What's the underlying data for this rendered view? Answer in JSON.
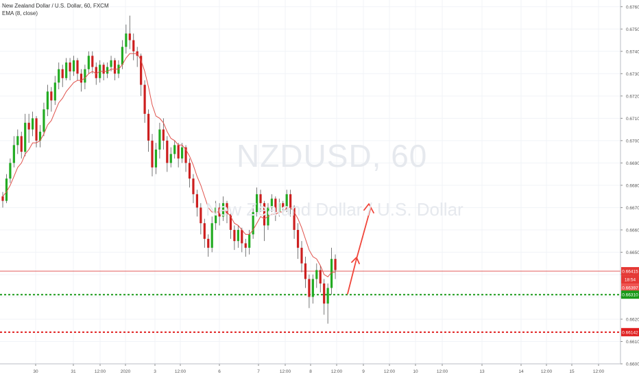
{
  "legend": {
    "symbol_line": "New Zealand Dollar / U.S. Dollar, 60, FXCM",
    "indicator_line": "EMA (8, close)"
  },
  "watermark": {
    "title": "NZDUSD, 60",
    "subtitle": "New Zealand Dollar / U.S. Dollar"
  },
  "colors": {
    "up": "#22ab22",
    "down": "#cc1f1f",
    "ema": "#e0504a",
    "grid": "#f0f3f7",
    "axis_text": "#555555",
    "support": "#1a9a1a",
    "lower_support": "#e02020",
    "resistance": "#e05a5a",
    "arrow": "#f0453a"
  },
  "chart_data": {
    "type": "candlestick",
    "title": "NZDUSD, 60",
    "ylim": [
      0.66,
      0.6763
    ],
    "y_ticks": [
      "0.66000",
      "0.66100",
      "0.66200",
      "0.66300",
      "0.66400",
      "0.66500",
      "0.66600",
      "0.66700",
      "0.66800",
      "0.66900",
      "0.67000",
      "0.67100",
      "0.67200",
      "0.67300",
      "0.67400",
      "0.67500",
      "0.67600"
    ],
    "x_ticks": [
      "30",
      "31",
      "12:00",
      "2020",
      "3",
      "12:00",
      "6",
      "7",
      "12:00",
      "8",
      "12:00",
      "9",
      "12:00",
      "10",
      "12:00",
      "13",
      "14",
      "12:00",
      "15",
      "12:00"
    ],
    "price_labels": {
      "last_price": "0.66415",
      "countdown": "18:54",
      "ema_value": "0.66397",
      "support": "0.66310",
      "lower_support": "0.66142"
    },
    "levels": {
      "resistance": 0.66415,
      "support": 0.6631,
      "lower_support": 0.66142
    },
    "candles": [
      [
        0.6675,
        0.6673,
        0.6677,
        0.667
      ],
      [
        0.6673,
        0.6683,
        0.6685,
        0.6672
      ],
      [
        0.6683,
        0.669,
        0.6692,
        0.6681
      ],
      [
        0.669,
        0.6698,
        0.6702,
        0.6688
      ],
      [
        0.6698,
        0.6702,
        0.6705,
        0.6694
      ],
      [
        0.6702,
        0.6695,
        0.6704,
        0.6692
      ],
      [
        0.6695,
        0.6708,
        0.6712,
        0.6693
      ],
      [
        0.6708,
        0.6705,
        0.6712,
        0.6699
      ],
      [
        0.6705,
        0.671,
        0.6713,
        0.6702
      ],
      [
        0.671,
        0.67,
        0.6711,
        0.6697
      ],
      [
        0.67,
        0.6704,
        0.6707,
        0.6697
      ],
      [
        0.6704,
        0.6714,
        0.6717,
        0.6702
      ],
      [
        0.6714,
        0.6722,
        0.6725,
        0.6711
      ],
      [
        0.6722,
        0.6718,
        0.6724,
        0.6713
      ],
      [
        0.6718,
        0.6726,
        0.6729,
        0.6716
      ],
      [
        0.6726,
        0.6732,
        0.6735,
        0.6723
      ],
      [
        0.6732,
        0.6728,
        0.6734,
        0.6724
      ],
      [
        0.6728,
        0.6735,
        0.6737,
        0.6727
      ],
      [
        0.6735,
        0.6731,
        0.6737,
        0.6727
      ],
      [
        0.6731,
        0.6736,
        0.6738,
        0.6729
      ],
      [
        0.6736,
        0.673,
        0.6737,
        0.6727
      ],
      [
        0.673,
        0.6726,
        0.6732,
        0.6722
      ],
      [
        0.6726,
        0.6732,
        0.6734,
        0.6723
      ],
      [
        0.6732,
        0.6738,
        0.674,
        0.673
      ],
      [
        0.6738,
        0.6733,
        0.674,
        0.673
      ],
      [
        0.6733,
        0.6728,
        0.6735,
        0.6725
      ],
      [
        0.6728,
        0.6734,
        0.6736,
        0.6726
      ],
      [
        0.6734,
        0.673,
        0.6735,
        0.6727
      ],
      [
        0.673,
        0.6733,
        0.6735,
        0.6728
      ],
      [
        0.6733,
        0.6736,
        0.6738,
        0.6731
      ],
      [
        0.6736,
        0.673,
        0.6737,
        0.6727
      ],
      [
        0.673,
        0.6734,
        0.6736,
        0.6728
      ],
      [
        0.6734,
        0.6742,
        0.6745,
        0.6732
      ],
      [
        0.6742,
        0.6748,
        0.6752,
        0.6739
      ],
      [
        0.6748,
        0.6745,
        0.6756,
        0.6741
      ],
      [
        0.6745,
        0.674,
        0.6748,
        0.6736
      ],
      [
        0.674,
        0.6738,
        0.6742,
        0.6733
      ],
      [
        0.6738,
        0.6725,
        0.6739,
        0.672
      ],
      [
        0.6725,
        0.6712,
        0.6727,
        0.6708
      ],
      [
        0.6712,
        0.67,
        0.6714,
        0.6695
      ],
      [
        0.67,
        0.6688,
        0.6703,
        0.6684
      ],
      [
        0.6688,
        0.6696,
        0.6699,
        0.6685
      ],
      [
        0.6696,
        0.6705,
        0.6708,
        0.6692
      ],
      [
        0.6705,
        0.67,
        0.671,
        0.6696
      ],
      [
        0.67,
        0.669,
        0.6702,
        0.6686
      ],
      [
        0.669,
        0.6694,
        0.6697,
        0.6688
      ],
      [
        0.6694,
        0.6698,
        0.67,
        0.6692
      ],
      [
        0.6698,
        0.6692,
        0.6699,
        0.6688
      ],
      [
        0.6692,
        0.6697,
        0.6699,
        0.669
      ],
      [
        0.6697,
        0.669,
        0.6698,
        0.6686
      ],
      [
        0.669,
        0.6683,
        0.6692,
        0.6679
      ],
      [
        0.6683,
        0.6676,
        0.6685,
        0.6672
      ],
      [
        0.6676,
        0.667,
        0.6678,
        0.6666
      ],
      [
        0.667,
        0.6663,
        0.6672,
        0.6658
      ],
      [
        0.6663,
        0.6656,
        0.6665,
        0.6652
      ],
      [
        0.6656,
        0.6652,
        0.6658,
        0.6648
      ],
      [
        0.6652,
        0.6663,
        0.6666,
        0.665
      ],
      [
        0.6663,
        0.667,
        0.6673,
        0.666
      ],
      [
        0.667,
        0.6666,
        0.6672,
        0.6662
      ],
      [
        0.6666,
        0.6672,
        0.6675,
        0.6664
      ],
      [
        0.6672,
        0.6667,
        0.6673,
        0.6663
      ],
      [
        0.6667,
        0.666,
        0.6669,
        0.6656
      ],
      [
        0.666,
        0.6655,
        0.6662,
        0.6651
      ],
      [
        0.6655,
        0.666,
        0.6662,
        0.6652
      ],
      [
        0.666,
        0.6654,
        0.6661,
        0.665
      ],
      [
        0.6654,
        0.6652,
        0.6656,
        0.6648
      ],
      [
        0.6652,
        0.6658,
        0.666,
        0.6649
      ],
      [
        0.6658,
        0.6668,
        0.6671,
        0.6656
      ],
      [
        0.6668,
        0.6676,
        0.6679,
        0.6666
      ],
      [
        0.6676,
        0.6672,
        0.6678,
        0.6668
      ],
      [
        0.6672,
        0.6662,
        0.6673,
        0.6655
      ],
      [
        0.6662,
        0.667,
        0.6672,
        0.666
      ],
      [
        0.667,
        0.6674,
        0.6676,
        0.6668
      ],
      [
        0.6674,
        0.6668,
        0.6675,
        0.6664
      ],
      [
        0.6668,
        0.6672,
        0.6674,
        0.6666
      ],
      [
        0.6672,
        0.667,
        0.6673,
        0.6667
      ],
      [
        0.667,
        0.6676,
        0.6678,
        0.6668
      ],
      [
        0.6676,
        0.667,
        0.6678,
        0.6666
      ],
      [
        0.667,
        0.666,
        0.6671,
        0.6656
      ],
      [
        0.666,
        0.6652,
        0.6663,
        0.6647
      ],
      [
        0.6652,
        0.6645,
        0.6655,
        0.6641
      ],
      [
        0.6645,
        0.6638,
        0.6648,
        0.6634
      ],
      [
        0.6638,
        0.663,
        0.664,
        0.6625
      ],
      [
        0.663,
        0.6638,
        0.664,
        0.6627
      ],
      [
        0.6638,
        0.6642,
        0.6645,
        0.6634
      ],
      [
        0.6642,
        0.6636,
        0.6644,
        0.6632
      ],
      [
        0.6636,
        0.6627,
        0.6638,
        0.6622
      ],
      [
        0.6627,
        0.6634,
        0.6636,
        0.6618
      ],
      [
        0.6634,
        0.6647,
        0.6652,
        0.6631
      ],
      [
        0.6647,
        0.6642,
        0.6649,
        0.6638
      ]
    ],
    "ema": [
      0.6675,
      0.6677,
      0.668,
      0.6684,
      0.6688,
      0.669,
      0.6694,
      0.6696,
      0.6699,
      0.6699,
      0.67,
      0.6703,
      0.6707,
      0.6709,
      0.6713,
      0.6717,
      0.6719,
      0.6722,
      0.6724,
      0.6726,
      0.6727,
      0.6727,
      0.6728,
      0.673,
      0.6731,
      0.673,
      0.6731,
      0.6731,
      0.6731,
      0.6732,
      0.6732,
      0.6732,
      0.6734,
      0.6737,
      0.6739,
      0.6739,
      0.6739,
      0.6736,
      0.6731,
      0.6724,
      0.6716,
      0.6711,
      0.671,
      0.6708,
      0.6704,
      0.6701,
      0.67,
      0.6698,
      0.6698,
      0.6696,
      0.6693,
      0.6689,
      0.6684,
      0.668,
      0.6675,
      0.667,
      0.6668,
      0.6668,
      0.6668,
      0.6669,
      0.6668,
      0.6666,
      0.6663,
      0.6662,
      0.666,
      0.6658,
      0.6658,
      0.666,
      0.6663,
      0.6666,
      0.6665,
      0.6666,
      0.6667,
      0.6667,
      0.6668,
      0.6668,
      0.667,
      0.667,
      0.6668,
      0.6665,
      0.6661,
      0.6656,
      0.6651,
      0.6648,
      0.6647,
      0.6644,
      0.664,
      0.6639,
      0.6641,
      0.6641
    ]
  }
}
